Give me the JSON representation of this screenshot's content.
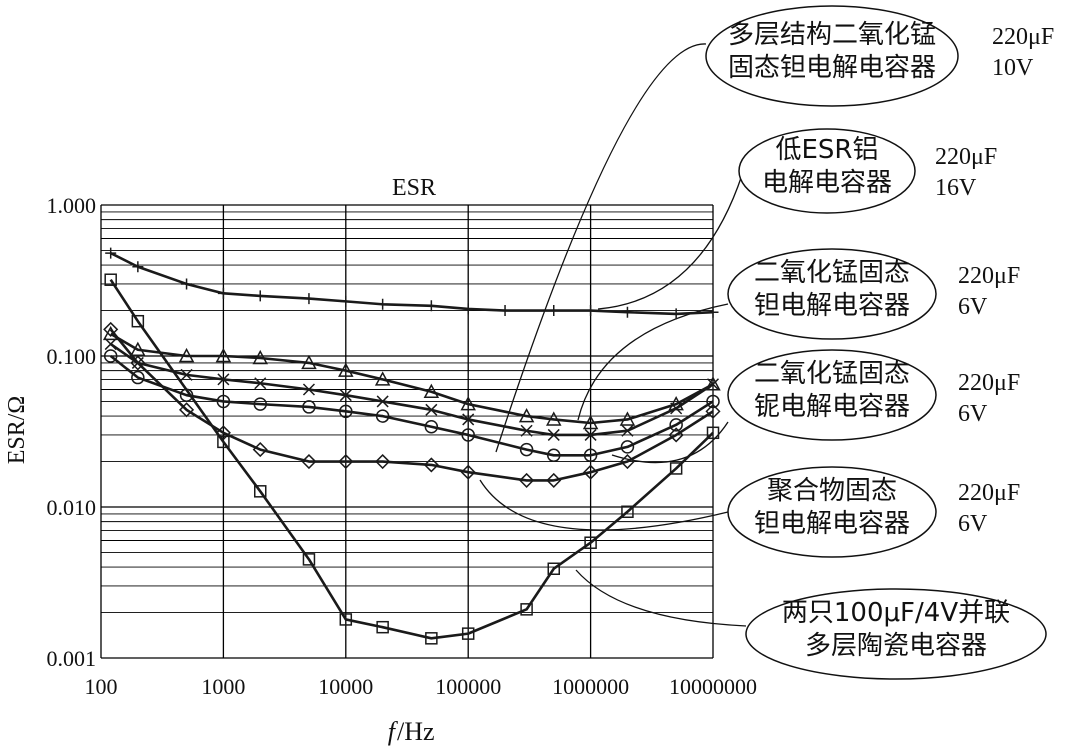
{
  "chart_data": {
    "type": "line",
    "title": "ESR",
    "xlabel_italic": "f",
    "xlabel_unit": "/Hz",
    "ylabel": "ESR/Ω",
    "x_scale": "log",
    "y_scale": "log",
    "xlim": [
      100,
      10000000
    ],
    "ylim": [
      0.001,
      1
    ],
    "grid": true,
    "x_ticks": [
      {
        "value": 100,
        "label": "100"
      },
      {
        "value": 1000,
        "label": "1000"
      },
      {
        "value": 10000,
        "label": "10000"
      },
      {
        "value": 100000,
        "label": "100000"
      },
      {
        "value": 1000000,
        "label": "1000000"
      },
      {
        "value": 10000000,
        "label": "10000000"
      }
    ],
    "y_ticks": [
      {
        "value": 1,
        "label": "1.000"
      },
      {
        "value": 0.1,
        "label": "0.100"
      },
      {
        "value": 0.01,
        "label": "0.010"
      },
      {
        "value": 0.001,
        "label": "0.001"
      }
    ],
    "series": [
      {
        "key": "low_esr_al",
        "marker": "plus",
        "x": [
          120,
          200,
          500,
          1000,
          2000,
          5000,
          10000,
          20000,
          50000,
          100000,
          200000,
          500000,
          1000000,
          2000000,
          5000000,
          10000000
        ],
        "y": [
          0.48,
          0.39,
          0.3,
          0.26,
          0.25,
          0.24,
          0.23,
          0.22,
          0.215,
          0.205,
          0.2,
          0.2,
          0.2,
          0.195,
          0.19,
          0.195
        ]
      },
      {
        "key": "mno2_ta_6v",
        "marker": "triangle",
        "x": [
          120,
          200,
          500,
          1000,
          2000,
          5000,
          10000,
          20000,
          50000,
          100000,
          300000,
          500000,
          1000000,
          2000000,
          5000000,
          10000000
        ],
        "y": [
          0.14,
          0.11,
          0.1,
          0.1,
          0.097,
          0.09,
          0.08,
          0.07,
          0.058,
          0.048,
          0.04,
          0.038,
          0.036,
          0.038,
          0.048,
          0.065
        ]
      },
      {
        "key": "mno2_nb_6v",
        "marker": "cross",
        "x": [
          120,
          200,
          500,
          1000,
          2000,
          5000,
          10000,
          20000,
          50000,
          100000,
          300000,
          500000,
          1000000,
          2000000,
          5000000,
          10000000
        ],
        "y": [
          0.12,
          0.09,
          0.075,
          0.07,
          0.066,
          0.06,
          0.055,
          0.05,
          0.044,
          0.038,
          0.032,
          0.03,
          0.03,
          0.032,
          0.045,
          0.065
        ]
      },
      {
        "key": "ml_mno2_ta_10v",
        "marker": "circle",
        "x": [
          120,
          200,
          500,
          1000,
          2000,
          5000,
          10000,
          20000,
          50000,
          100000,
          300000,
          500000,
          1000000,
          2000000,
          5000000,
          10000000
        ],
        "y": [
          0.1,
          0.072,
          0.055,
          0.05,
          0.048,
          0.046,
          0.043,
          0.04,
          0.034,
          0.03,
          0.024,
          0.022,
          0.022,
          0.025,
          0.035,
          0.05
        ]
      },
      {
        "key": "polymer_ta_6v",
        "marker": "diamond",
        "x": [
          120,
          200,
          500,
          1000,
          2000,
          5000,
          10000,
          20000,
          50000,
          100000,
          300000,
          500000,
          1000000,
          2000000,
          5000000,
          10000000
        ],
        "y": [
          0.15,
          0.09,
          0.044,
          0.031,
          0.024,
          0.02,
          0.02,
          0.02,
          0.019,
          0.017,
          0.015,
          0.015,
          0.017,
          0.02,
          0.03,
          0.043
        ]
      },
      {
        "key": "mlcc_2x100uf",
        "marker": "square",
        "x": [
          120,
          200,
          1000,
          2000,
          5000,
          10000,
          20000,
          50000,
          100000,
          300000,
          500000,
          1000000,
          2000000,
          5000000,
          10000000
        ],
        "y": [
          0.32,
          0.17,
          0.027,
          0.0127,
          0.0045,
          0.0018,
          0.0016,
          0.00135,
          0.00145,
          0.0021,
          0.0039,
          0.0058,
          0.0093,
          0.018,
          0.031
        ]
      }
    ],
    "annotations": [
      {
        "key": "ml_mno2_ta_10v",
        "lines": [
          "多层结构二氧化锰",
          "固态钽电解电容器"
        ],
        "rating": [
          "220μF",
          "10V"
        ]
      },
      {
        "key": "low_esr_al",
        "lines": [
          "低ESR铝",
          "电解电容器"
        ],
        "rating": [
          "220μF",
          "16V"
        ]
      },
      {
        "key": "mno2_ta_6v",
        "lines": [
          "二氧化锰固态",
          "钽电解电容器"
        ],
        "rating": [
          "220μF",
          "6V"
        ]
      },
      {
        "key": "mno2_nb_6v",
        "lines": [
          "二氧化锰固态",
          "铌电解电容器"
        ],
        "rating": [
          "220μF",
          "6V"
        ]
      },
      {
        "key": "polymer_ta_6v",
        "lines": [
          "聚合物固态",
          "钽电解电容器"
        ],
        "rating": [
          "220μF",
          "6V"
        ]
      },
      {
        "key": "mlcc_2x100uf",
        "lines": [
          "两只100μF/4V并联",
          "多层陶瓷电容器"
        ],
        "rating": []
      }
    ],
    "style": {
      "line_color": "#1a1a1a",
      "grid_color": "#000000",
      "background": "#ffffff"
    }
  }
}
